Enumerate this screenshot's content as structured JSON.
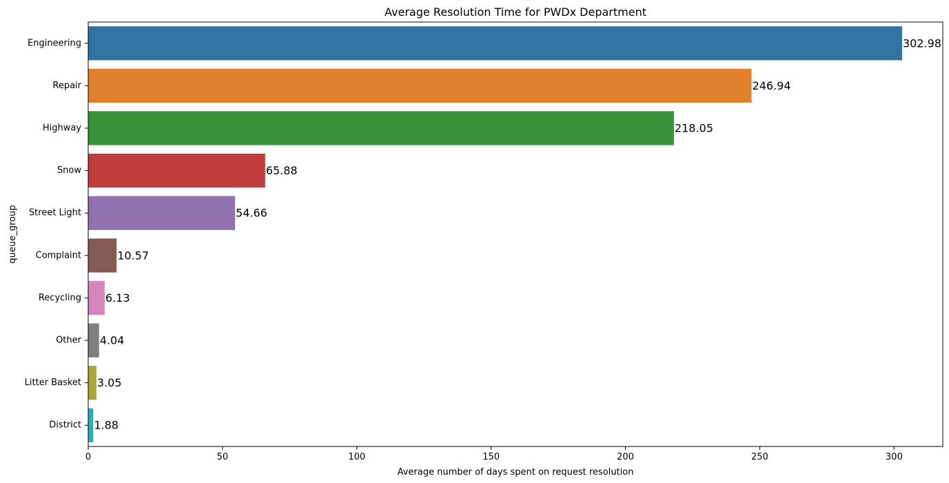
{
  "chart_data": {
    "type": "bar",
    "orientation": "horizontal",
    "title": "Average Resolution Time for PWDx Department",
    "xlabel": "Average number of days spent on request resolution",
    "ylabel": "queue_group",
    "categories": [
      "Engineering",
      "Repair",
      "Highway",
      "Snow",
      "Street Light",
      "Complaint",
      "Recycling",
      "Other",
      "Litter Basket",
      "District"
    ],
    "values": [
      302.98,
      246.94,
      218.05,
      65.88,
      54.66,
      10.57,
      6.13,
      4.04,
      3.05,
      1.88
    ],
    "data_labels": [
      "302.98",
      "246.94",
      "218.05",
      "65.88",
      "54.66",
      "10.57",
      "6.13",
      "4.04",
      "3.05",
      "1.88"
    ],
    "colors": [
      "#3274a1",
      "#e1812c",
      "#3a923a",
      "#c03d3e",
      "#9372b2",
      "#845b53",
      "#d684bd",
      "#7f7f7f",
      "#a9aa35",
      "#2eabb8"
    ],
    "xlim": [
      0,
      318.13
    ],
    "xticks": [
      0,
      50,
      100,
      150,
      200,
      250,
      300
    ],
    "grid": false,
    "legend": "none"
  }
}
